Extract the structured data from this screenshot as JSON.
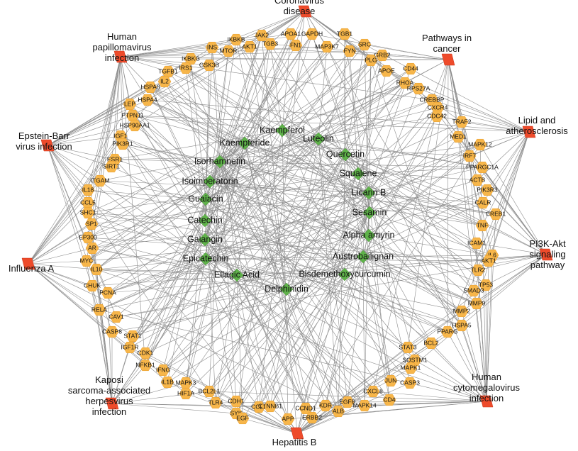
{
  "network": {
    "node_colors": {
      "gene": "#f7b64a",
      "compound": "#5fb24a",
      "pathway": "#ee4b2b",
      "edge": "#8c8c8c"
    },
    "pathways": [
      [
        "Coronavirus",
        "disease"
      ],
      [
        "Pathways in",
        "cancer"
      ],
      [
        "Lipid and",
        "atherosclerosis"
      ],
      [
        "PI3K-Akt",
        "signaling",
        "pathway"
      ],
      [
        "Human",
        "cytomegalovirus",
        "infection"
      ],
      [
        "Hepatitis B"
      ],
      [
        "Kaposi",
        "sarcoma-associated",
        "herpesvirus",
        "infection"
      ],
      [
        "Influenza A"
      ],
      [
        "Epstein-Barr",
        "virus infection"
      ],
      [
        "Human",
        "papillomavirus",
        "infection"
      ]
    ],
    "compounds": [
      "Kaempferol",
      "Luteolin",
      "Kaempferide",
      "Quercetin",
      "Isorhamnetin",
      "Squalene",
      "Isoimperatorin",
      "Licarin B",
      "Guaiacin",
      "Sesamin",
      "Catechin",
      "Alpha amyrin",
      "Galangin",
      "Austrobailignan",
      "Epicatechin",
      "Ellagic Acid",
      "Bisdemethoxycurcumin",
      "Delphinidin"
    ],
    "genes": [
      "IKBKB",
      "JAK2",
      "APOA1",
      "GAPDH",
      "TGB1",
      "INS",
      "MTOR",
      "AKT1",
      "TGB3",
      "FN1",
      "MAP3K7",
      "FYN",
      "SRC",
      "IKBKG",
      "GSK3B",
      "IRS1",
      "TGFB1",
      "IL2",
      "GRB2",
      "PLG",
      "APOE",
      "CD44",
      "HSPA8",
      "HSPA4",
      "RHOA",
      "RPS27A",
      "CREBBP",
      "CXCR4",
      "CDC42",
      "LEP",
      "PTPN11",
      "HSP90AA1",
      "IGF1",
      "PIK3R1",
      "ESR1",
      "SIRT1",
      "ITGAM",
      "TRAF2",
      "MED1",
      "MAPK12",
      "IRF7",
      "PPARGC1A",
      "ACTB",
      "PIK3R3",
      "CALR",
      "CREB1",
      "TNF",
      "IL18",
      "CCL5",
      "SHC1",
      "SP1",
      "EP300",
      "AR",
      "IL6",
      "ICAM1",
      "AKT1",
      "MYC",
      "IL10",
      "CHUK",
      "PCNA",
      "RELA",
      "CAV1",
      "TLR2",
      "TP53",
      "SMAD3",
      "MMP9",
      "MMP2",
      "HSPA5",
      "CASP8",
      "STAT1",
      "IGF1R",
      "CDK1",
      "PPARG",
      "BCL2",
      "STAT3",
      "SQSTM1",
      "NFKB1",
      "IFNG",
      "IL1B",
      "MAPK3",
      "HIF1A",
      "BCL2L1",
      "MAPK1",
      "CASP3",
      "TLR4",
      "CDH1",
      "SYK",
      "CCL2",
      "EGF",
      "CTNNB1",
      "APP",
      "CCND1",
      "ERBB2",
      "KDR",
      "EGFR",
      "ALB",
      "CXCL8",
      "JUN",
      "MAPK14",
      "CD4"
    ]
  }
}
